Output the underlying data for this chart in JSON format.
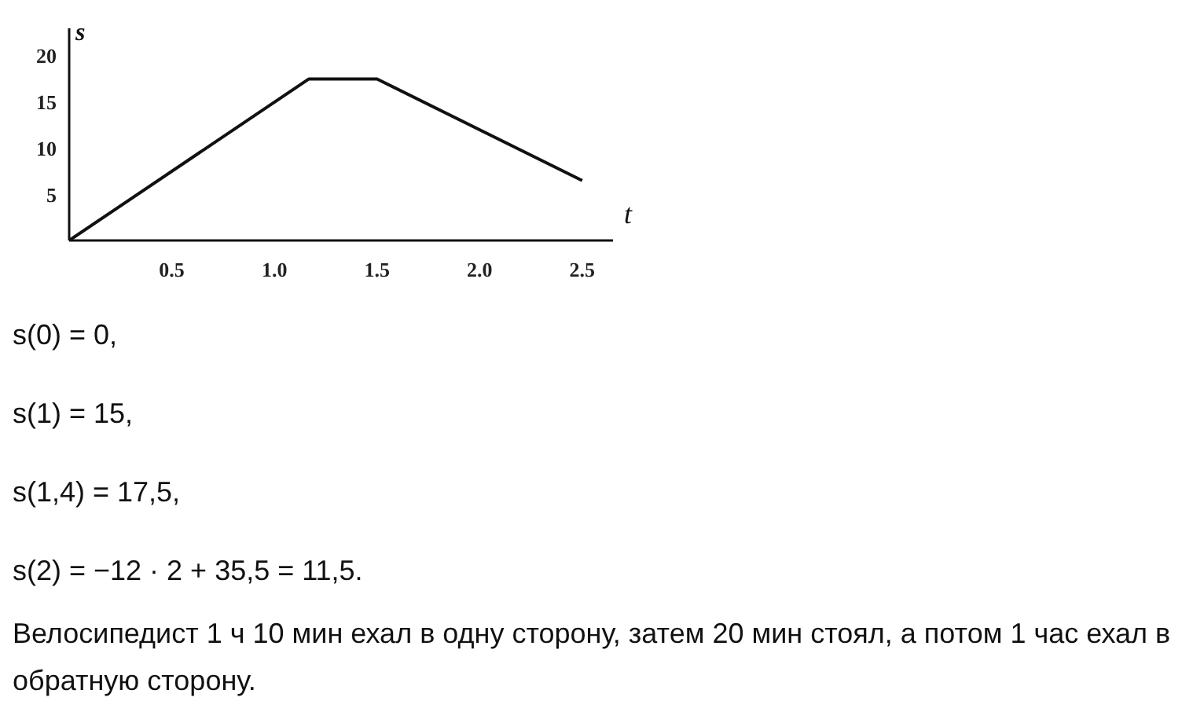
{
  "chart_data": {
    "type": "line",
    "xlabel": "t",
    "ylabel": "s",
    "x": [
      0,
      1.167,
      1.5,
      2.5
    ],
    "series": [
      {
        "color": "#111111",
        "values": [
          0,
          17.5,
          17.5,
          6.5
        ]
      }
    ],
    "xlim": [
      0,
      2.65
    ],
    "ylim": [
      0,
      23
    ],
    "xticks": [
      0.5,
      {
        "value": 1,
        "label": "1.0"
      },
      1.5,
      {
        "value": 2,
        "label": "2.0"
      },
      2.5
    ],
    "yticks": [
      5,
      10,
      15,
      20
    ],
    "grid": false,
    "marker": "none",
    "line_style": "solid",
    "annotations": [
      "s(0) = 0,",
      "s(1) = 15,",
      "s(1,4) = 17,5,",
      "s(2) = −12 · 2 + 35,5 = 11,5.",
      "Велосипедист 1 ч 10 мин ехал в одну сторону, затем 20 мин стоял, а потом 1 час ехал в обратную сторону."
    ]
  }
}
